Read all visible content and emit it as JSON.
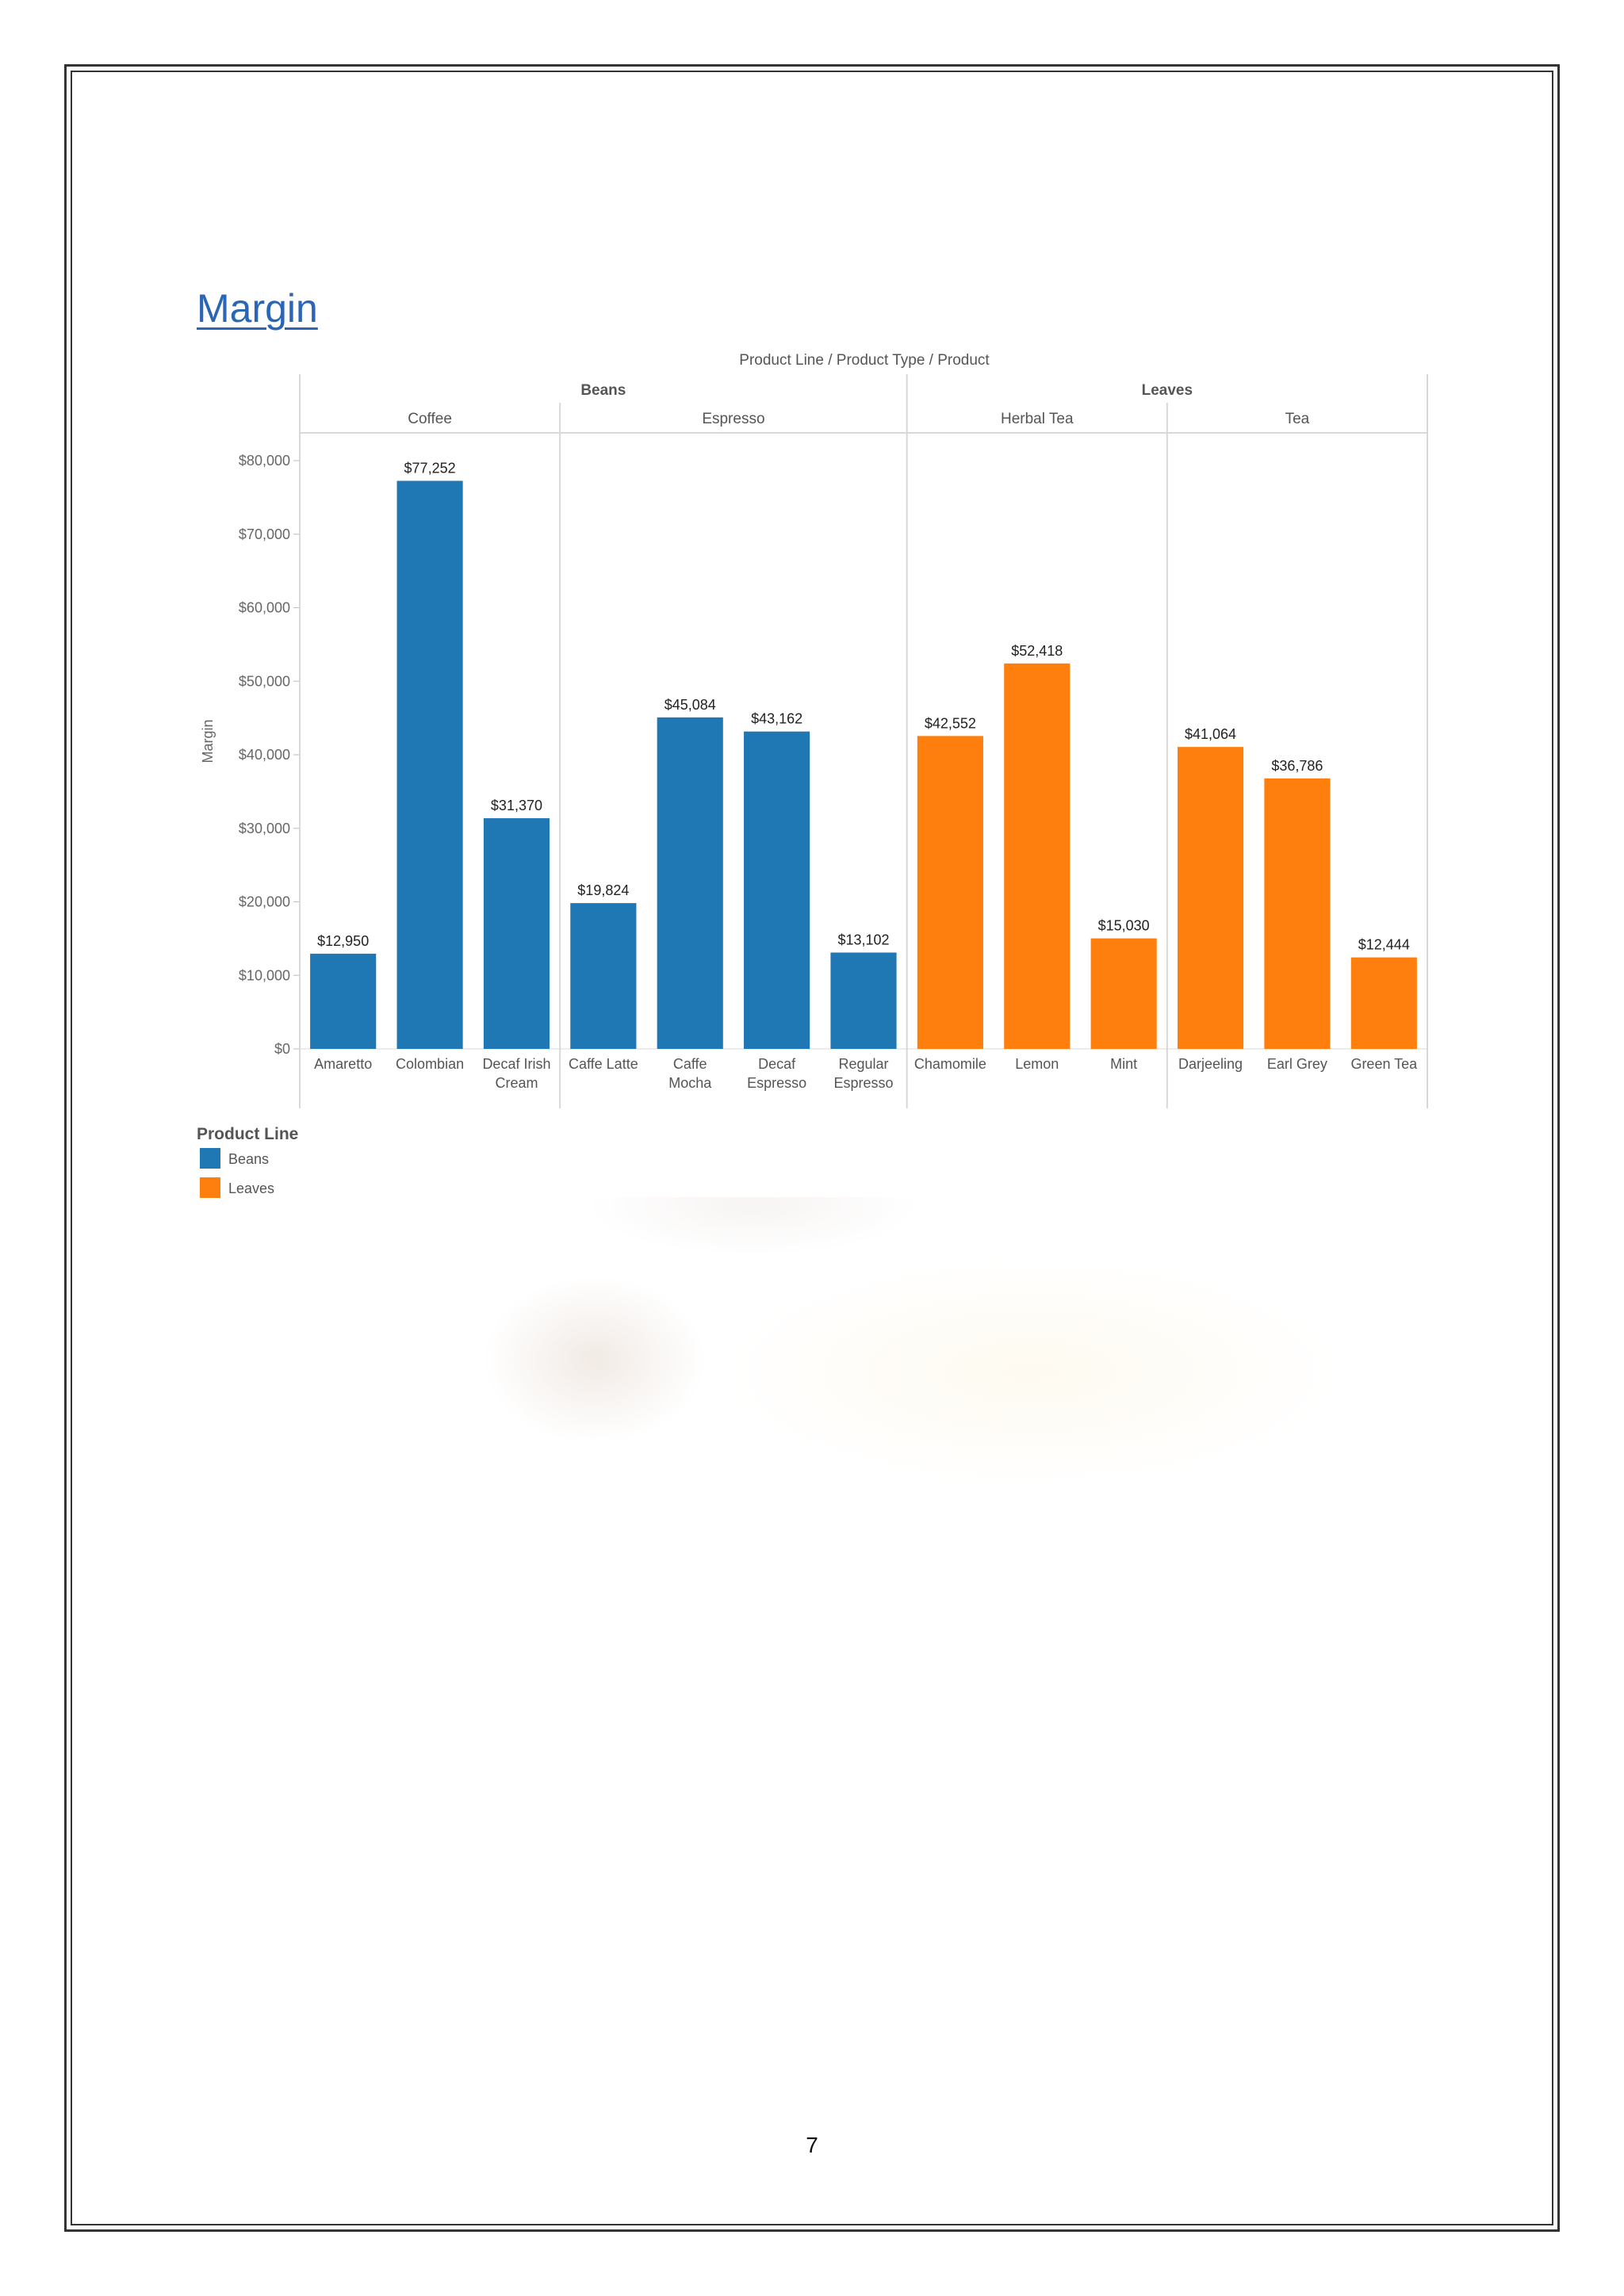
{
  "page": {
    "heading": "Margin",
    "page_number": "7"
  },
  "colors": {
    "Beans": "#1f77b4",
    "Leaves": "#ff7f0e",
    "heading": "#2a66b5",
    "grid_line": "#d8d8d8",
    "axis_text": "#666666"
  },
  "chart_data": {
    "type": "bar",
    "title": "Product Line / Product Type / Product",
    "ylabel": "Margin",
    "xlabel": "",
    "ylim": [
      0,
      80000
    ],
    "y_ticks": [
      0,
      10000,
      20000,
      30000,
      40000,
      50000,
      60000,
      70000,
      80000
    ],
    "y_tick_labels": [
      "$0",
      "$10,000",
      "$20,000",
      "$30,000",
      "$40,000",
      "$50,000",
      "$60,000",
      "$70,000",
      "$80,000"
    ],
    "grid": false,
    "product_lines": [
      {
        "name": "Beans",
        "product_types": [
          {
            "name": "Coffee",
            "products": [
              {
                "label": [
                  "Amaretto"
                ],
                "value": 12950,
                "value_label": "$12,950"
              },
              {
                "label": [
                  "Colombian"
                ],
                "value": 77252,
                "value_label": "$77,252"
              },
              {
                "label": [
                  "Decaf Irish",
                  "Cream"
                ],
                "value": 31370,
                "value_label": "$31,370"
              }
            ]
          },
          {
            "name": "Espresso",
            "products": [
              {
                "label": [
                  "Caffe Latte"
                ],
                "value": 19824,
                "value_label": "$19,824"
              },
              {
                "label": [
                  "Caffe",
                  "Mocha"
                ],
                "value": 45084,
                "value_label": "$45,084"
              },
              {
                "label": [
                  "Decaf",
                  "Espresso"
                ],
                "value": 43162,
                "value_label": "$43,162"
              },
              {
                "label": [
                  "Regular",
                  "Espresso"
                ],
                "value": 13102,
                "value_label": "$13,102"
              }
            ]
          }
        ]
      },
      {
        "name": "Leaves",
        "product_types": [
          {
            "name": "Herbal Tea",
            "products": [
              {
                "label": [
                  "Chamomile"
                ],
                "value": 42552,
                "value_label": "$42,552"
              },
              {
                "label": [
                  "Lemon"
                ],
                "value": 52418,
                "value_label": "$52,418"
              },
              {
                "label": [
                  "Mint"
                ],
                "value": 15030,
                "value_label": "$15,030"
              }
            ]
          },
          {
            "name": "Tea",
            "products": [
              {
                "label": [
                  "Darjeeling"
                ],
                "value": 41064,
                "value_label": "$41,064"
              },
              {
                "label": [
                  "Earl Grey"
                ],
                "value": 36786,
                "value_label": "$36,786"
              },
              {
                "label": [
                  "Green Tea"
                ],
                "value": 12444,
                "value_label": "$12,444"
              }
            ]
          }
        ]
      }
    ],
    "legend": {
      "title": "Product Line",
      "position": "bottom-left",
      "items": [
        "Beans",
        "Leaves"
      ]
    }
  }
}
